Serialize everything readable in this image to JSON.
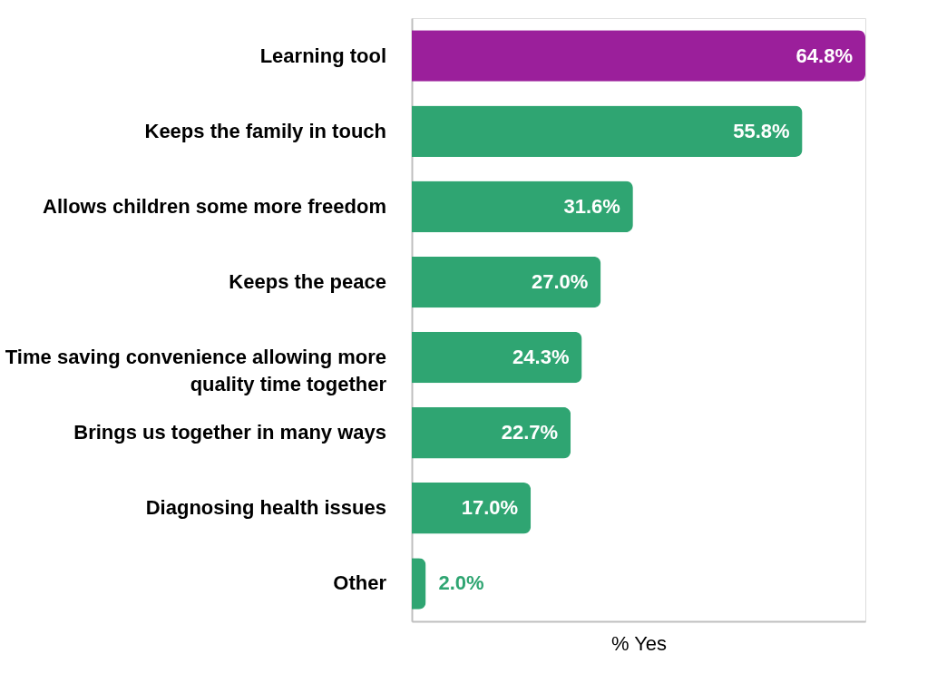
{
  "chart_data": {
    "type": "bar",
    "orientation": "horizontal",
    "xlabel": "% Yes",
    "categories": [
      "Learning tool",
      "Keeps the family in touch",
      "Allows children some more freedom",
      "Keeps the peace",
      "Time saving convenience allowing more quality time together",
      "Brings us together in many ways",
      "Diagnosing health issues",
      "Other"
    ],
    "values": [
      64.8,
      55.8,
      31.6,
      27.0,
      24.3,
      22.7,
      17.0,
      2.0
    ],
    "colors": [
      "#9b1f9b",
      "#2fa572",
      "#2fa572",
      "#2fa572",
      "#2fa572",
      "#2fa572",
      "#2fa572",
      "#2fa572"
    ],
    "value_labels": [
      "64.8%",
      "55.8%",
      "31.6%",
      "27.0%",
      "24.3%",
      "22.7%",
      "17.0%",
      "2.0%"
    ],
    "grid": false
  }
}
